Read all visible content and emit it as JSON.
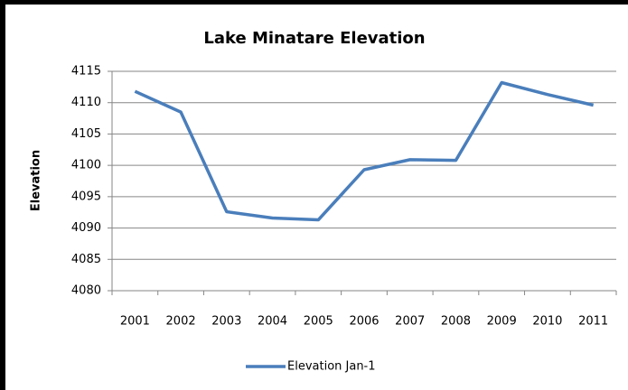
{
  "chart_data": {
    "type": "line",
    "title": "Lake Minatare Elevation",
    "y_label": "Elevation",
    "categories": [
      "2001",
      "2002",
      "2003",
      "2004",
      "2005",
      "2006",
      "2007",
      "2008",
      "2009",
      "2010",
      "2011"
    ],
    "series": [
      {
        "name": "Elevation Jan-1",
        "color": "#4a7ebb",
        "values": [
          4111.8,
          4108.5,
          4092.6,
          4091.6,
          4091.3,
          4099.3,
          4100.9,
          4100.8,
          4113.2,
          4111.3,
          4109.6
        ]
      }
    ],
    "ylim": [
      4080,
      4115
    ],
    "yticks": [
      4080,
      4085,
      4090,
      4095,
      4100,
      4105,
      4110,
      4115
    ],
    "grid": true,
    "legend": "bottom"
  }
}
